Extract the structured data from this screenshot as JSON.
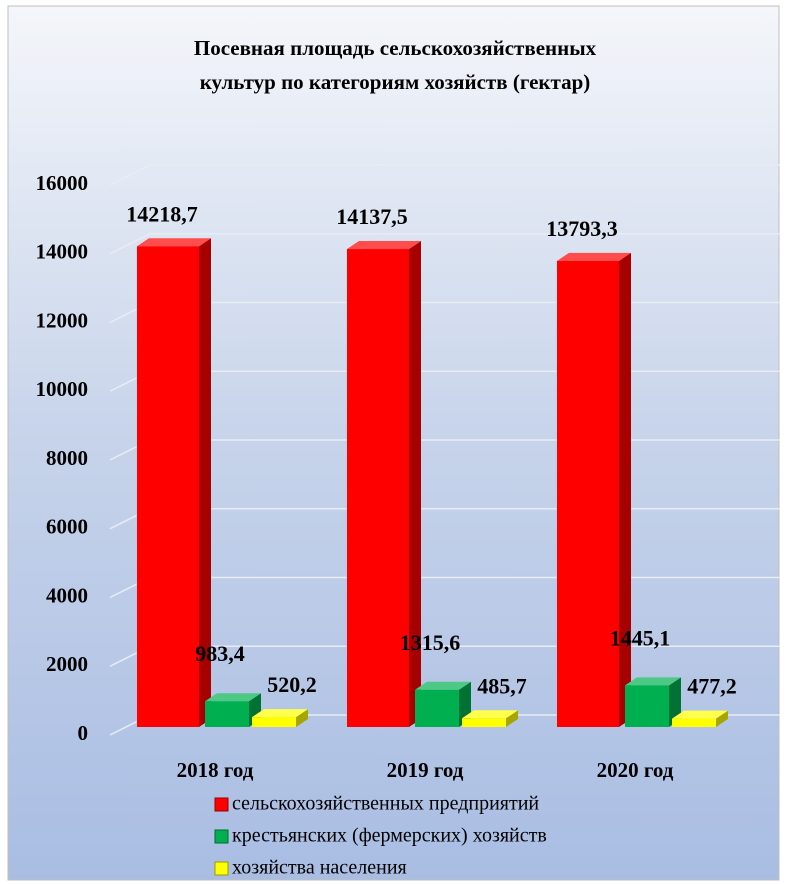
{
  "chart_data": {
    "type": "bar3d",
    "title": "Посевная площадь сельскохозяйственных культур по категориям хозяйств (гектар)",
    "title_lines": [
      "Посевная площадь сельскохозяйственных",
      "культур по категориям хозяйств (гектар)"
    ],
    "categories": [
      "2018 год",
      "2019 год",
      "2020 год"
    ],
    "series": [
      {
        "name": "сельскохозяйственных предприятий",
        "color": "#ff0000",
        "values": [
          14218.7,
          14137.5,
          13793.3
        ],
        "value_labels": [
          "14218,7",
          "14137,5",
          "13793,3"
        ]
      },
      {
        "name": "крестьянских (фермерских) хозяйств",
        "color": "#00b050",
        "values": [
          983.4,
          1315.6,
          1445.1
        ],
        "value_labels": [
          "983,4",
          "1315,6",
          "1445,1"
        ]
      },
      {
        "name": "хозяйства населения",
        "color": "#ffff00",
        "values": [
          520.2,
          485.7,
          477.2
        ],
        "value_labels": [
          "520,2",
          "485,7",
          "477,2"
        ]
      }
    ],
    "ylim": [
      0,
      16000
    ],
    "yticks": [
      0,
      2000,
      4000,
      6000,
      8000,
      10000,
      12000,
      14000,
      16000
    ],
    "grid": true,
    "legend": "bottom"
  }
}
